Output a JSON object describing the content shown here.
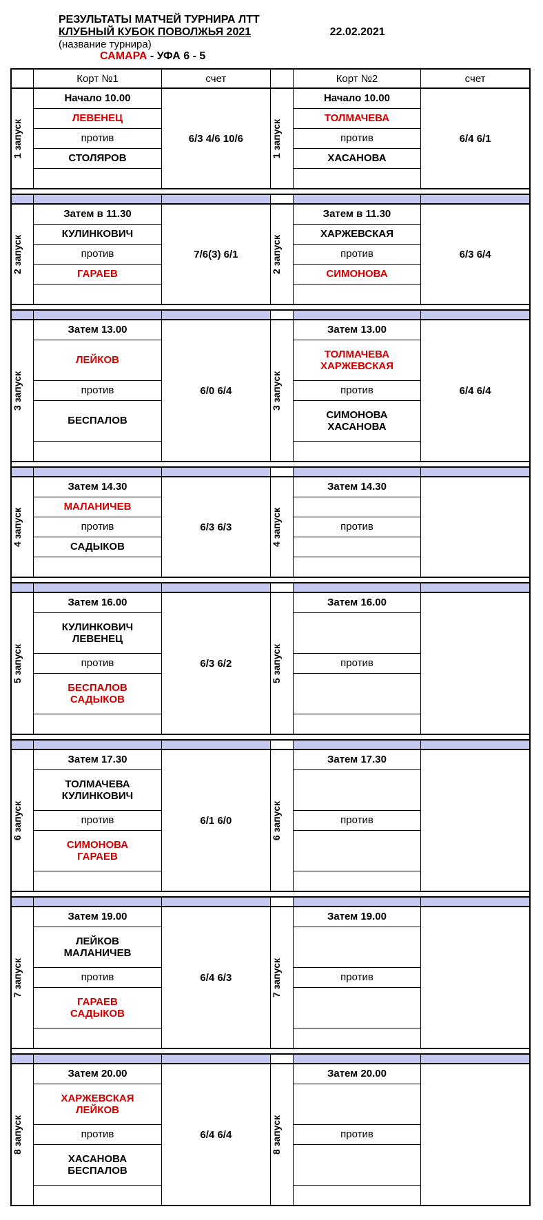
{
  "header": {
    "line1": "РЕЗУЛЬТАТЫ МАТЧЕЙ ТУРНИРА ЛТТ",
    "line2": "КЛУБНЫЙ КУБОК ПОВОЛЖЬЯ 2021",
    "date": "22.02.2021",
    "line3": "(название турнира)",
    "team1": "САМАРА",
    "score_sep": " - УФА 6 - 5"
  },
  "columns": {
    "court1": "Корт №1",
    "score": "счет",
    "court2": "Корт №2"
  },
  "vs": "против",
  "rounds": [
    {
      "label": "1 запуск",
      "c1": {
        "time": "Начало 10.00",
        "p1": "ЛЕВЕНЕЦ",
        "p1red": true,
        "p2": "СТОЛЯРОВ",
        "p2red": false,
        "score": "6/3 4/6 10/6",
        "tall": false
      },
      "c2": {
        "time": "Начало 10.00",
        "p1": "ТОЛМАЧЕВА",
        "p1red": true,
        "p2": "ХАСАНОВА",
        "p2red": false,
        "score": "6/4 6/1",
        "tall": false
      }
    },
    {
      "label": "2 запуск",
      "c1": {
        "time": "Затем в 11.30",
        "p1": "КУЛИНКОВИЧ",
        "p1red": false,
        "p2": "ГАРАЕВ",
        "p2red": true,
        "score": "7/6(3) 6/1",
        "tall": false
      },
      "c2": {
        "time": "Затем в 11.30",
        "p1": "ХАРЖЕВСКАЯ",
        "p1red": false,
        "p2": "СИМОНОВА",
        "p2red": true,
        "score": "6/3 6/4",
        "tall": false
      }
    },
    {
      "label": "3 запуск",
      "c1": {
        "time": "Затем 13.00",
        "p1": "ЛЕЙКОВ",
        "p1red": true,
        "p2": "БЕСПАЛОВ",
        "p2red": false,
        "score": "6/0 6/4",
        "tall": true
      },
      "c2": {
        "time": "Затем 13.00",
        "p1": "ТОЛМАЧЕВА\nХАРЖЕВСКАЯ",
        "p1red": true,
        "p2": "СИМОНОВА\nХАСАНОВА",
        "p2red": false,
        "score": "6/4 6/4",
        "tall": true
      }
    },
    {
      "label": "4 запуск",
      "c1": {
        "time": "Затем 14.30",
        "p1": "МАЛАНИЧЕВ",
        "p1red": true,
        "p2": "САДЫКОВ",
        "p2red": false,
        "score": "6/3 6/3",
        "tall": false
      },
      "c2": {
        "time": "Затем 14.30",
        "p1": "",
        "p1red": false,
        "p2": "",
        "p2red": false,
        "score": "",
        "tall": false
      }
    },
    {
      "label": "5 запуск",
      "c1": {
        "time": "Затем 16.00",
        "p1": "КУЛИНКОВИЧ\nЛЕВЕНЕЦ",
        "p1red": false,
        "p2": "БЕСПАЛОВ\nСАДЫКОВ",
        "p2red": true,
        "score": "6/3 6/2",
        "tall": true
      },
      "c2": {
        "time": "Затем 16.00",
        "p1": "",
        "p1red": false,
        "p2": "",
        "p2red": false,
        "score": "",
        "tall": true
      }
    },
    {
      "label": "6 запуск",
      "c1": {
        "time": "Затем 17.30",
        "p1": "ТОЛМАЧЕВА\nКУЛИНКОВИЧ",
        "p1red": false,
        "p2": "СИМОНОВА\nГАРАЕВ",
        "p2red": true,
        "score": "6/1 6/0",
        "tall": true
      },
      "c2": {
        "time": "Затем 17.30",
        "p1": "",
        "p1red": false,
        "p2": "",
        "p2red": false,
        "score": "",
        "tall": true
      }
    },
    {
      "label": "7 запуск",
      "c1": {
        "time": "Затем 19.00",
        "p1": "ЛЕЙКОВ\nМАЛАНИЧЕВ",
        "p1red": false,
        "p2": "ГАРАЕВ\nСАДЫКОВ",
        "p2red": true,
        "score": "6/4 6/3",
        "tall": true
      },
      "c2": {
        "time": "Затем 19.00",
        "p1": "",
        "p1red": false,
        "p2": "",
        "p2red": false,
        "score": "",
        "tall": true
      }
    },
    {
      "label": "8 запуск",
      "c1": {
        "time": "Затем 20.00",
        "p1": "ХАРЖЕВСКАЯ\nЛЕЙКОВ",
        "p1red": true,
        "p2": "ХАСАНОВА\nБЕСПАЛОВ",
        "p2red": false,
        "score": "6/4 6/4",
        "tall": true
      },
      "c2": {
        "time": "Затем 20.00",
        "p1": "",
        "p1red": false,
        "p2": "",
        "p2red": false,
        "score": "",
        "tall": true
      }
    }
  ],
  "colors": {
    "red": "#d00000",
    "separator": "#c4c8f0"
  }
}
